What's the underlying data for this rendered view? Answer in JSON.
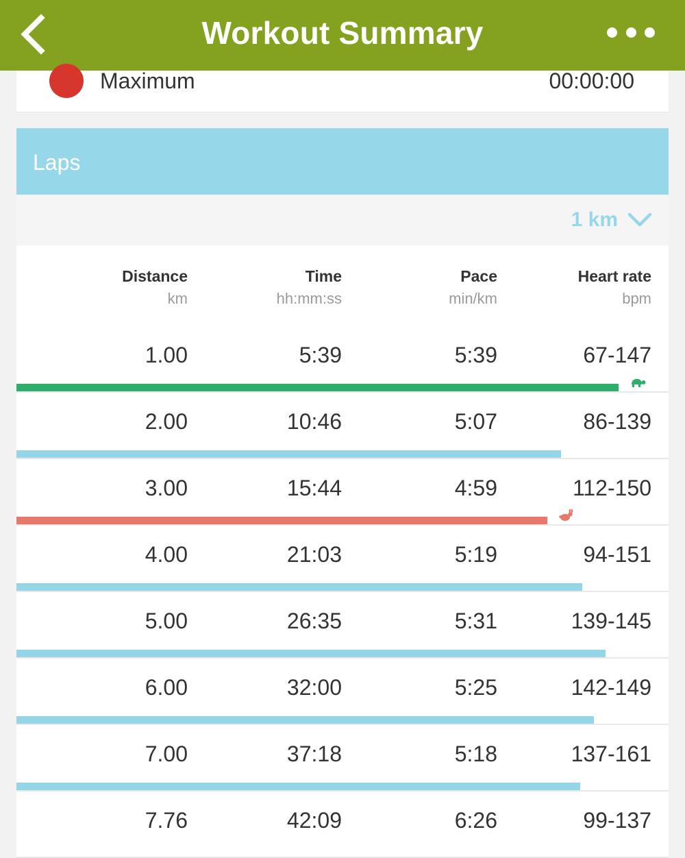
{
  "header": {
    "title": "Workout Summary",
    "back_icon": "chevron-left-icon",
    "more_icon": "more-horizontal-icon",
    "bg_color": "#84a11f"
  },
  "zone": {
    "label": "Maximum",
    "value": "00:00:00",
    "dot_color": "#d6362c"
  },
  "laps": {
    "title": "Laps",
    "split": {
      "value": "1 km",
      "icon": "chevron-down-icon",
      "color": "#96d8ea"
    },
    "columns": [
      {
        "title": "Distance",
        "unit": "km"
      },
      {
        "title": "Time",
        "unit": "hh:mm:ss"
      },
      {
        "title": "Pace",
        "unit": "min/km"
      },
      {
        "title": "Heart rate",
        "unit": "bpm"
      }
    ],
    "colors": {
      "normal": "#94d6e8",
      "slowest": "#2fae6b",
      "fastest": "#e8786c"
    },
    "rows": [
      {
        "distance": "1.00",
        "time": "5:39",
        "pace": "5:39",
        "hr": "67-147",
        "bar_fraction": 0.923,
        "marker": "slowest",
        "icon": "turtle-icon"
      },
      {
        "distance": "2.00",
        "time": "10:46",
        "pace": "5:07",
        "hr": "86-139",
        "bar_fraction": 0.835,
        "marker": "normal"
      },
      {
        "distance": "3.00",
        "time": "15:44",
        "pace": "4:59",
        "hr": "112-150",
        "bar_fraction": 0.814,
        "marker": "fastest",
        "icon": "rabbit-icon"
      },
      {
        "distance": "4.00",
        "time": "21:03",
        "pace": "5:19",
        "hr": "94-151",
        "bar_fraction": 0.868,
        "marker": "normal"
      },
      {
        "distance": "5.00",
        "time": "26:35",
        "pace": "5:31",
        "hr": "139-145",
        "bar_fraction": 0.903,
        "marker": "normal"
      },
      {
        "distance": "6.00",
        "time": "32:00",
        "pace": "5:25",
        "hr": "142-149",
        "bar_fraction": 0.886,
        "marker": "normal"
      },
      {
        "distance": "7.00",
        "time": "37:18",
        "pace": "5:18",
        "hr": "137-161",
        "bar_fraction": 0.865,
        "marker": "normal"
      },
      {
        "distance": "7.76",
        "time": "42:09",
        "pace": "6:26",
        "hr": "99-137",
        "bar_fraction": null,
        "marker": "normal"
      }
    ]
  }
}
